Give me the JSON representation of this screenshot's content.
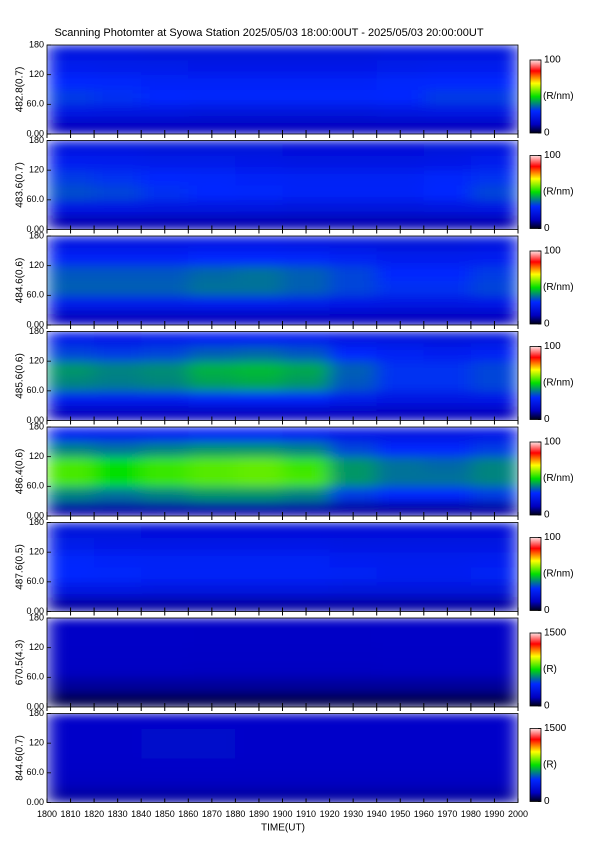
{
  "title": "Scanning Photomter at Syowa Station 2025/05/03 18:00:00UT - 2025/05/03 20:00:00UT",
  "xlabel": "TIME(UT)",
  "colormap": {
    "positions": [
      0,
      0.12,
      0.3,
      0.5,
      0.68,
      0.85,
      1
    ],
    "colors": [
      "#000018",
      "#0000c0",
      "#0028ff",
      "#00e000",
      "#ffff00",
      "#ff0000",
      "#ffe4e4"
    ]
  },
  "chart_data": [
    {
      "type": "heatmap",
      "ylabel": "482.8(0.7)",
      "xlim": [
        1800,
        2000
      ],
      "xticks": [
        1800,
        1810,
        1820,
        1830,
        1840,
        1850,
        1860,
        1870,
        1880,
        1890,
        1900,
        1910,
        1920,
        1930,
        1940,
        1950,
        1960,
        1970,
        1980,
        1990,
        2000
      ],
      "ylim": [
        0,
        180
      ],
      "yticks": [
        {
          "value": 0,
          "label": "0.00"
        },
        {
          "value": 60,
          "label": "60.0"
        },
        120,
        180
      ],
      "xbins": [
        1800,
        1820,
        1840,
        1860,
        1880,
        1900,
        1920,
        1940,
        1960,
        1980,
        2000
      ],
      "ybins": [
        0,
        30,
        60,
        90,
        120,
        150,
        180
      ],
      "values": [
        [
          12,
          12,
          12,
          12,
          12,
          12,
          12,
          12,
          12,
          12
        ],
        [
          22,
          21,
          21,
          20,
          20,
          20,
          20,
          21,
          22,
          22
        ],
        [
          32,
          31,
          30,
          29,
          29,
          29,
          29,
          30,
          32,
          32
        ],
        [
          30,
          29,
          28,
          28,
          28,
          28,
          28,
          29,
          30,
          30
        ],
        [
          25,
          24,
          24,
          23,
          23,
          23,
          23,
          24,
          25,
          25
        ],
        [
          21,
          21,
          20,
          20,
          20,
          20,
          20,
          21,
          21,
          21
        ]
      ],
      "clim": [
        0,
        100
      ],
      "cticks": [
        0,
        100
      ],
      "clabel": "(R/nm)"
    },
    {
      "type": "heatmap",
      "ylabel": "483.6(0.7)",
      "xlim": [
        1800,
        2000
      ],
      "xticks": [
        1800,
        1810,
        1820,
        1830,
        1840,
        1850,
        1860,
        1870,
        1880,
        1890,
        1900,
        1910,
        1920,
        1930,
        1940,
        1950,
        1960,
        1970,
        1980,
        1990,
        2000
      ],
      "ylim": [
        0,
        180
      ],
      "yticks": [
        {
          "value": 0,
          "label": "0.00"
        },
        {
          "value": 60,
          "label": "60.0"
        },
        120,
        180
      ],
      "xbins": [
        1800,
        1820,
        1840,
        1860,
        1880,
        1900,
        1920,
        1940,
        1960,
        1980,
        2000
      ],
      "ybins": [
        0,
        30,
        60,
        90,
        120,
        150,
        180
      ],
      "values": [
        [
          11,
          11,
          11,
          11,
          11,
          11,
          11,
          11,
          11,
          11
        ],
        [
          22,
          22,
          21,
          21,
          21,
          20,
          20,
          20,
          21,
          22
        ],
        [
          34,
          33,
          31,
          30,
          29,
          28,
          28,
          28,
          30,
          33
        ],
        [
          32,
          31,
          30,
          29,
          28,
          27,
          27,
          27,
          29,
          31
        ],
        [
          26,
          25,
          24,
          24,
          23,
          22,
          22,
          22,
          23,
          25
        ],
        [
          21,
          21,
          20,
          20,
          20,
          19,
          19,
          19,
          20,
          21
        ]
      ],
      "clim": [
        0,
        100
      ],
      "cticks": [
        0,
        100
      ],
      "clabel": "(R/nm)"
    },
    {
      "type": "heatmap",
      "ylabel": "484.6(0.6)",
      "xlim": [
        1800,
        2000
      ],
      "xticks": [
        1800,
        1810,
        1820,
        1830,
        1840,
        1850,
        1860,
        1870,
        1880,
        1890,
        1900,
        1910,
        1920,
        1930,
        1940,
        1950,
        1960,
        1970,
        1980,
        1990,
        2000
      ],
      "ylim": [
        0,
        180
      ],
      "yticks": [
        {
          "value": 0,
          "label": "0.00"
        },
        {
          "value": 60,
          "label": "60.0"
        },
        120,
        180
      ],
      "xbins": [
        1800,
        1820,
        1840,
        1860,
        1880,
        1900,
        1920,
        1940,
        1960,
        1980,
        2000
      ],
      "ybins": [
        0,
        30,
        60,
        90,
        120,
        150,
        180
      ],
      "values": [
        [
          12,
          12,
          12,
          12,
          12,
          12,
          12,
          12,
          12,
          12
        ],
        [
          24,
          24,
          24,
          25,
          25,
          24,
          23,
          22,
          22,
          23
        ],
        [
          36,
          36,
          36,
          38,
          38,
          36,
          33,
          31,
          31,
          33
        ],
        [
          35,
          35,
          35,
          37,
          38,
          36,
          33,
          30,
          30,
          32
        ],
        [
          28,
          28,
          28,
          30,
          30,
          29,
          27,
          25,
          25,
          26
        ],
        [
          22,
          22,
          22,
          23,
          23,
          22,
          21,
          20,
          20,
          21
        ]
      ],
      "clim": [
        0,
        100
      ],
      "cticks": [
        0,
        100
      ],
      "clabel": "(R/nm)"
    },
    {
      "type": "heatmap",
      "ylabel": "485.6(0.6)",
      "xlim": [
        1800,
        2000
      ],
      "xticks": [
        1800,
        1810,
        1820,
        1830,
        1840,
        1850,
        1860,
        1870,
        1880,
        1890,
        1900,
        1910,
        1920,
        1930,
        1940,
        1950,
        1960,
        1970,
        1980,
        1990,
        2000
      ],
      "ylim": [
        0,
        180
      ],
      "yticks": [
        {
          "value": 0,
          "label": "0.00"
        },
        {
          "value": 60,
          "label": "60.0"
        },
        120,
        180
      ],
      "xbins": [
        1800,
        1820,
        1840,
        1860,
        1880,
        1900,
        1920,
        1940,
        1960,
        1980,
        2000
      ],
      "ybins": [
        0,
        30,
        60,
        90,
        120,
        150,
        180
      ],
      "values": [
        [
          12,
          12,
          12,
          12,
          12,
          12,
          12,
          12,
          12,
          12
        ],
        [
          25,
          25,
          25,
          27,
          28,
          28,
          24,
          22,
          22,
          23
        ],
        [
          40,
          39,
          40,
          43,
          44,
          42,
          35,
          31,
          31,
          33
        ],
        [
          42,
          40,
          41,
          45,
          46,
          44,
          36,
          31,
          31,
          33
        ],
        [
          33,
          32,
          33,
          36,
          37,
          35,
          30,
          27,
          26,
          27
        ],
        [
          24,
          23,
          24,
          26,
          26,
          25,
          22,
          21,
          20,
          21
        ]
      ],
      "clim": [
        0,
        100
      ],
      "cticks": [
        0,
        100
      ],
      "clabel": "(R/nm)"
    },
    {
      "type": "heatmap",
      "ylabel": "486.4(0.6)",
      "xlim": [
        1800,
        2000
      ],
      "xticks": [
        1800,
        1810,
        1820,
        1830,
        1840,
        1850,
        1860,
        1870,
        1880,
        1890,
        1900,
        1910,
        1920,
        1930,
        1940,
        1950,
        1960,
        1970,
        1980,
        1990,
        2000
      ],
      "ylim": [
        0,
        180
      ],
      "yticks": [
        {
          "value": 0,
          "label": "0.00"
        },
        {
          "value": 60,
          "label": "60.0"
        },
        120,
        180
      ],
      "xbins": [
        1800,
        1820,
        1840,
        1860,
        1880,
        1900,
        1920,
        1940,
        1960,
        1980,
        2000
      ],
      "ybins": [
        0,
        30,
        60,
        90,
        120,
        150,
        180
      ],
      "values": [
        [
          10,
          10,
          10,
          10,
          10,
          10,
          10,
          10,
          10,
          10
        ],
        [
          40,
          38,
          40,
          42,
          42,
          40,
          32,
          30,
          30,
          32
        ],
        [
          55,
          50,
          54,
          56,
          57,
          55,
          42,
          38,
          38,
          40
        ],
        [
          55,
          50,
          54,
          56,
          57,
          54,
          42,
          38,
          37,
          40
        ],
        [
          40,
          38,
          40,
          42,
          42,
          40,
          33,
          30,
          30,
          32
        ],
        [
          26,
          25,
          26,
          27,
          27,
          26,
          23,
          22,
          22,
          23
        ]
      ],
      "clim": [
        0,
        100
      ],
      "cticks": [
        0,
        100
      ],
      "clabel": "(R/nm)"
    },
    {
      "type": "heatmap",
      "ylabel": "487.6(0.5)",
      "xlim": [
        1800,
        2000
      ],
      "xticks": [
        1800,
        1810,
        1820,
        1830,
        1840,
        1850,
        1860,
        1870,
        1880,
        1890,
        1900,
        1910,
        1920,
        1930,
        1940,
        1950,
        1960,
        1970,
        1980,
        1990,
        2000
      ],
      "ylim": [
        0,
        180
      ],
      "yticks": [
        {
          "value": 0,
          "label": "0.00"
        },
        {
          "value": 60,
          "label": "60.0"
        },
        120,
        180
      ],
      "xbins": [
        1800,
        1820,
        1840,
        1860,
        1880,
        1900,
        1920,
        1940,
        1960,
        1980,
        2000
      ],
      "ybins": [
        0,
        30,
        60,
        90,
        120,
        150,
        180
      ],
      "values": [
        [
          10,
          10,
          10,
          10,
          10,
          10,
          10,
          10,
          10,
          10
        ],
        [
          22,
          22,
          21,
          21,
          21,
          21,
          20,
          20,
          20,
          20
        ],
        [
          30,
          29,
          28,
          28,
          28,
          28,
          27,
          26,
          26,
          27
        ],
        [
          29,
          28,
          27,
          27,
          27,
          27,
          26,
          25,
          25,
          26
        ],
        [
          24,
          23,
          23,
          23,
          23,
          23,
          22,
          22,
          22,
          22
        ],
        [
          20,
          20,
          19,
          19,
          19,
          19,
          19,
          19,
          19,
          19
        ]
      ],
      "clim": [
        0,
        100
      ],
      "cticks": [
        0,
        100
      ],
      "clabel": "(R/nm)"
    },
    {
      "type": "heatmap",
      "ylabel": "670.5(4.3)",
      "xlim": [
        1800,
        2000
      ],
      "xticks": [
        1800,
        1810,
        1820,
        1830,
        1840,
        1850,
        1860,
        1870,
        1880,
        1890,
        1900,
        1910,
        1920,
        1930,
        1940,
        1950,
        1960,
        1970,
        1980,
        1990,
        2000
      ],
      "ylim": [
        0,
        180
      ],
      "yticks": [
        {
          "value": 0,
          "label": "0.00"
        },
        {
          "value": 60,
          "label": "60.0"
        },
        120,
        180
      ],
      "xbins": [
        1800,
        1820,
        1840,
        1860,
        1880,
        1900,
        1920,
        1940,
        1960,
        1980,
        2000
      ],
      "ybins": [
        0,
        30,
        60,
        90,
        120,
        150,
        180
      ],
      "values": [
        [
          60,
          60,
          60,
          60,
          60,
          60,
          60,
          60,
          60,
          60
        ],
        [
          140,
          140,
          140,
          140,
          140,
          140,
          140,
          140,
          140,
          140
        ],
        [
          190,
          190,
          190,
          185,
          185,
          185,
          185,
          190,
          190,
          190
        ],
        [
          200,
          200,
          200,
          195,
          195,
          195,
          195,
          200,
          200,
          200
        ],
        [
          210,
          210,
          210,
          205,
          205,
          205,
          205,
          210,
          210,
          210
        ],
        [
          210,
          210,
          210,
          205,
          205,
          205,
          205,
          210,
          210,
          210
        ]
      ],
      "clim": [
        0,
        1500
      ],
      "cticks": [
        0,
        1500
      ],
      "clabel": "(R)"
    },
    {
      "type": "heatmap",
      "ylabel": "844.6(0.7)",
      "xlim": [
        1800,
        2000
      ],
      "xticks": [
        1800,
        1810,
        1820,
        1830,
        1840,
        1850,
        1860,
        1870,
        1880,
        1890,
        1900,
        1910,
        1920,
        1930,
        1940,
        1950,
        1960,
        1970,
        1980,
        1990,
        2000
      ],
      "ylim": [
        0,
        180
      ],
      "yticks": [
        {
          "value": 0,
          "label": "0.00"
        },
        {
          "value": 60,
          "label": "60.0"
        },
        120,
        180
      ],
      "xbins": [
        1800,
        1820,
        1840,
        1860,
        1880,
        1900,
        1920,
        1940,
        1960,
        1980,
        2000
      ],
      "ybins": [
        0,
        30,
        60,
        90,
        120,
        150,
        180
      ],
      "values": [
        [
          150,
          150,
          150,
          150,
          150,
          150,
          150,
          150,
          150,
          150
        ],
        [
          190,
          190,
          190,
          190,
          190,
          190,
          190,
          190,
          190,
          190
        ],
        [
          210,
          210,
          215,
          215,
          210,
          210,
          210,
          210,
          210,
          210
        ],
        [
          220,
          220,
          225,
          225,
          220,
          220,
          220,
          220,
          220,
          220
        ],
        [
          220,
          220,
          225,
          225,
          220,
          220,
          220,
          220,
          220,
          220
        ],
        [
          220,
          220,
          220,
          220,
          220,
          220,
          220,
          220,
          220,
          220
        ]
      ],
      "clim": [
        0,
        1500
      ],
      "cticks": [
        0,
        1500
      ],
      "clabel": "(R)"
    }
  ]
}
